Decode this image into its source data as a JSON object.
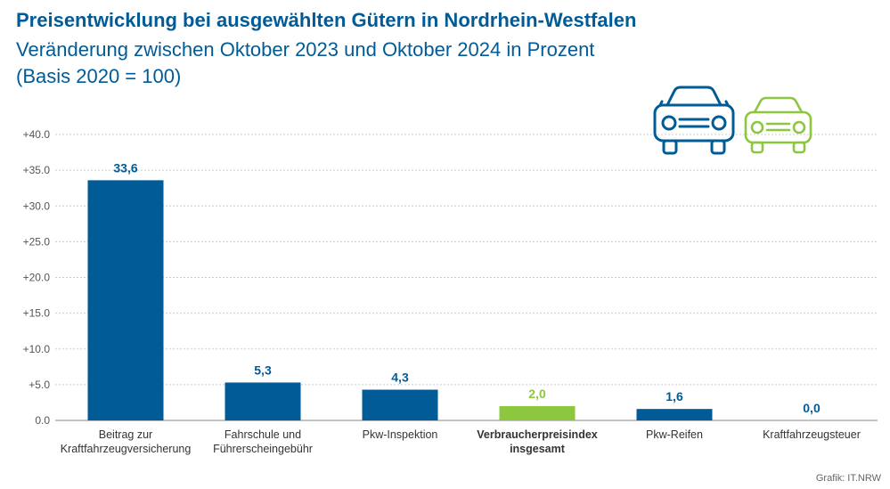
{
  "header": {
    "title": "Preisentwicklung bei ausgewählten Gütern in Nordrhein-Westfalen",
    "subtitle_line1": "Veränderung zwischen Oktober 2023 und Oktober 2024 in Prozent",
    "subtitle_line2": "(Basis 2020 = 100)"
  },
  "source": "Grafik: IT.NRW",
  "icons": [
    "car-icon-blue",
    "car-icon-green"
  ],
  "colors": {
    "primary": "#005b96",
    "highlight": "#8dc63f",
    "grid": "#cccccc"
  },
  "chart_data": {
    "type": "bar",
    "categories": [
      [
        "Beitrag zur",
        "Kraftfahrzeugversicherung"
      ],
      [
        "Fahrschule und",
        "Führerscheingebühr"
      ],
      [
        "Pkw-Inspektion"
      ],
      [
        "Verbraucherpreisindex",
        "insgesamt"
      ],
      [
        "Pkw-Reifen"
      ],
      [
        "Kraftfahrzeugsteuer"
      ]
    ],
    "values": [
      33.6,
      5.3,
      4.3,
      2.0,
      1.6,
      0.0
    ],
    "value_labels": [
      "33,6",
      "5,3",
      "4,3",
      "2,0",
      "1,6",
      "0,0"
    ],
    "highlight_index": 3,
    "ylim": [
      0,
      40
    ],
    "yticks": [
      0,
      5,
      10,
      15,
      20,
      25,
      30,
      35,
      40
    ],
    "ytick_labels": [
      "0.0",
      "+5.0",
      "+10.0",
      "+15.0",
      "+20.0",
      "+25.0",
      "+30.0",
      "+35.0",
      "+40.0"
    ],
    "grid": true,
    "legend": "none"
  }
}
